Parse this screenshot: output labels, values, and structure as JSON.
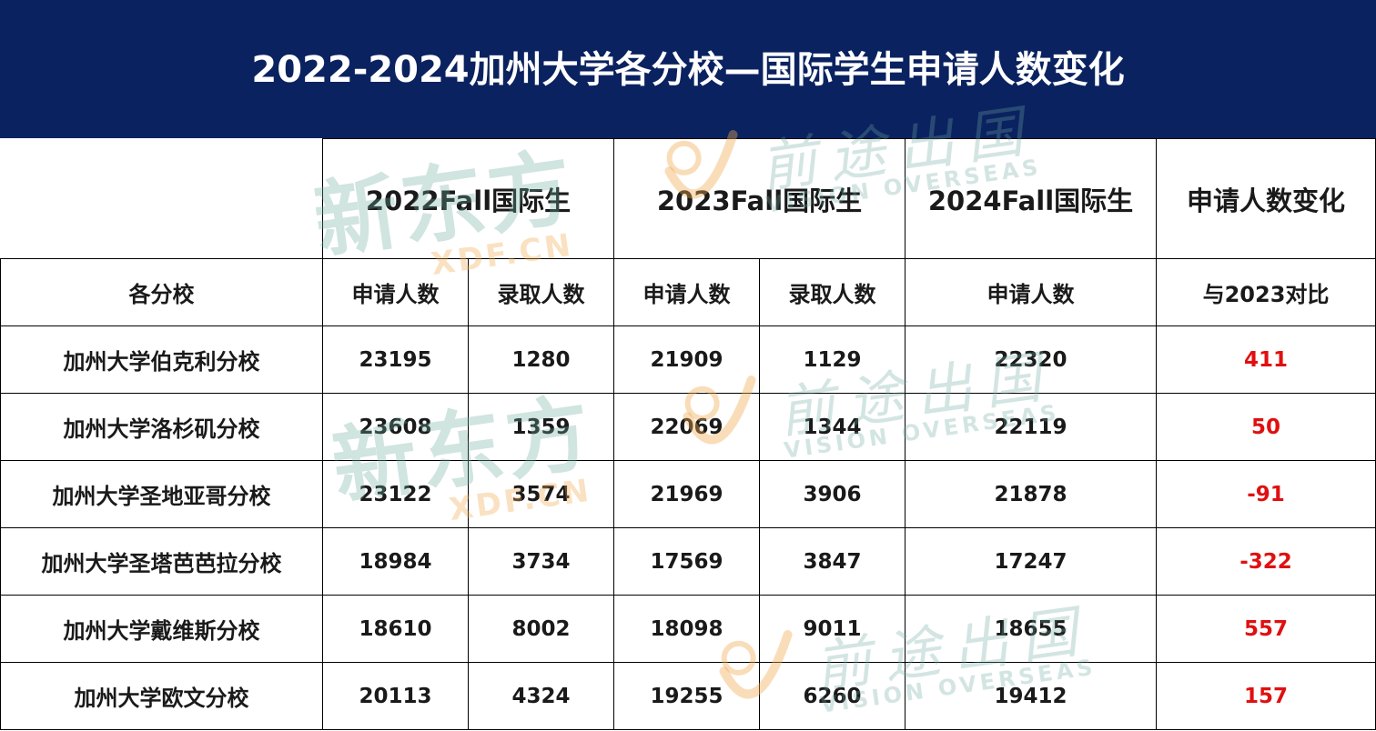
{
  "title": "2022-2024加州大学各分校—国际学生申请人数变化",
  "header": {
    "groups": [
      "2022Fall国际生",
      "2023Fall国际生",
      "2024Fall国际生",
      "申请人数变化"
    ],
    "school_label": "各分校",
    "sub": [
      "申请人数",
      "录取人数",
      "申请人数",
      "录取人数",
      "申请人数",
      "与2023对比"
    ]
  },
  "watermark": {
    "xdf_cn": "新东方",
    "xdf_en": "XDF.CN",
    "vision_cn": "前途出国",
    "vision_en": "VISION OVERSEAS"
  },
  "chart_data": {
    "type": "table",
    "title": "2022-2024加州大学各分校—国际学生申请人数变化",
    "columns": [
      "各分校",
      "2022Fall国际生 申请人数",
      "2022Fall国际生 录取人数",
      "2023Fall国际生 申请人数",
      "2023Fall国际生 录取人数",
      "2024Fall国际生 申请人数",
      "申请人数变化 与2023对比"
    ],
    "rows": [
      {
        "school": "加州大学伯克利分校",
        "apply_2022": "23195",
        "admit_2022": "1280",
        "apply_2023": "21909",
        "admit_2023": "1129",
        "apply_2024": "22320",
        "change": "411"
      },
      {
        "school": "加州大学洛杉矶分校",
        "apply_2022": "23608",
        "admit_2022": "1359",
        "apply_2023": "22069",
        "admit_2023": "1344",
        "apply_2024": "22119",
        "change": "50"
      },
      {
        "school": "加州大学圣地亚哥分校",
        "apply_2022": "23122",
        "admit_2022": "3574",
        "apply_2023": "21969",
        "admit_2023": "3906",
        "apply_2024": "21878",
        "change": "-91"
      },
      {
        "school": "加州大学圣塔芭芭拉分校",
        "apply_2022": "18984",
        "admit_2022": "3734",
        "apply_2023": "17569",
        "admit_2023": "3847",
        "apply_2024": "17247",
        "change": "-322"
      },
      {
        "school": "加州大学戴维斯分校",
        "apply_2022": "18610",
        "admit_2022": "8002",
        "apply_2023": "18098",
        "admit_2023": "9011",
        "apply_2024": "18655",
        "change": "557"
      },
      {
        "school": "加州大学欧文分校",
        "apply_2022": "20113",
        "admit_2022": "4324",
        "apply_2023": "19255",
        "admit_2023": "6260",
        "apply_2024": "19412",
        "change": "157"
      }
    ]
  },
  "colors": {
    "title_bg": "#0b2260",
    "title_text": "#ffffff",
    "change_text": "#e01010",
    "border": "#000000"
  }
}
